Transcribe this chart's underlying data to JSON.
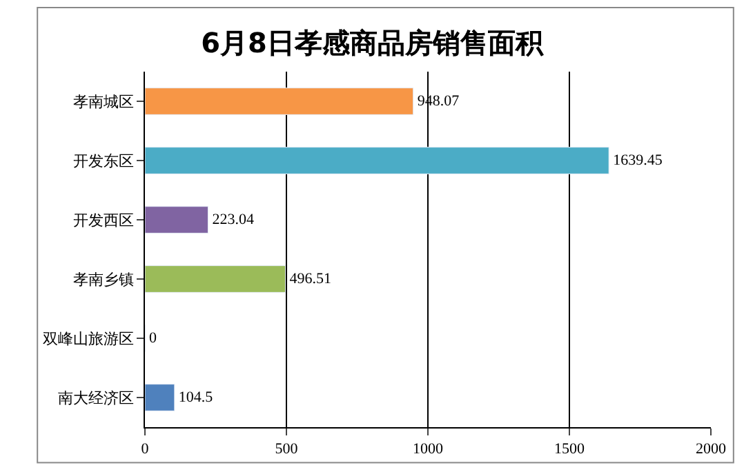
{
  "chart_data": {
    "type": "bar",
    "orientation": "horizontal",
    "title": "6月8日孝感商品房销售面积",
    "categories": [
      "孝南城区",
      "开发东区",
      "开发西区",
      "孝南乡镇",
      "双峰山旅游区",
      "南大经济区"
    ],
    "values": [
      948.07,
      1639.45,
      223.04,
      496.51,
      0,
      104.5
    ],
    "colors": [
      "#f79646",
      "#4bacc6",
      "#8064a2",
      "#9bbb59",
      null,
      "#4f81bd"
    ],
    "xlim": [
      0,
      2000
    ],
    "xticks": [
      0,
      500,
      1000,
      1500,
      2000
    ],
    "grid": "x",
    "data_labels": true
  }
}
